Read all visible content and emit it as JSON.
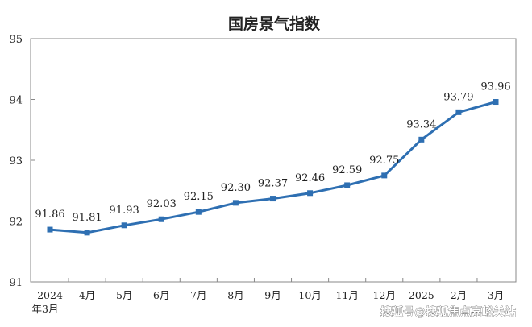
{
  "chart_data": {
    "type": "line",
    "title": "国房景气指数",
    "categories": [
      "2024\n年3月",
      "4月",
      "5月",
      "6月",
      "7月",
      "8月",
      "9月",
      "10月",
      "11月",
      "12月",
      "2025",
      "2月",
      "3月"
    ],
    "series": [
      {
        "values": [
          91.86,
          91.81,
          91.93,
          92.03,
          92.15,
          92.3,
          92.37,
          92.46,
          92.59,
          92.75,
          93.34,
          93.79,
          93.96
        ]
      }
    ],
    "data_labels": [
      "91.86",
      "91.81",
      "91.93",
      "92.03",
      "92.15",
      "92.30",
      "92.37",
      "92.46",
      "92.59",
      "92.75",
      "93.34",
      "93.79",
      "93.96"
    ],
    "ylim": [
      91,
      95
    ],
    "yticks": [
      "91",
      "92",
      "93",
      "94",
      "95"
    ],
    "grid": false,
    "color": "#2e6fb2"
  },
  "watermark": "搜狐号@搜狐焦点嘉峪关站"
}
